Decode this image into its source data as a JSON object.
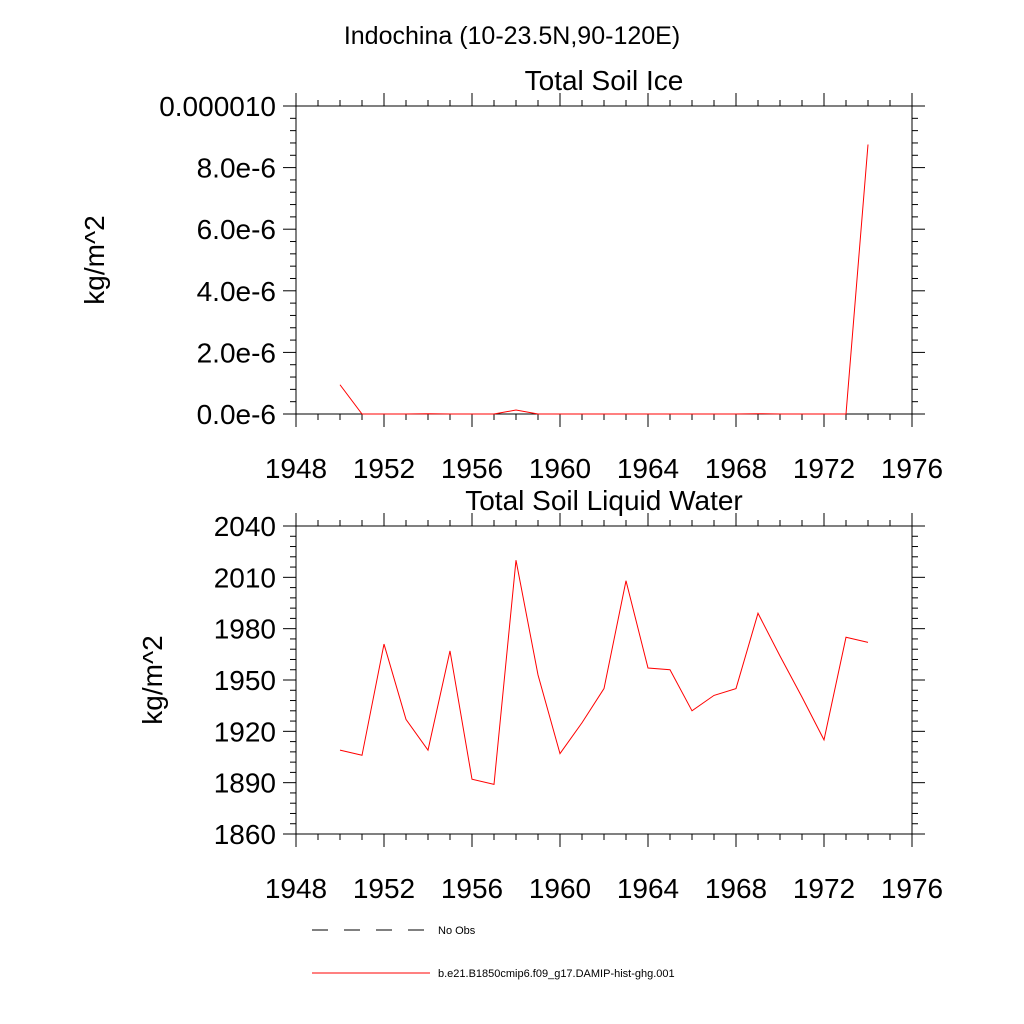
{
  "figure": {
    "suptitle": "Indochina (10-23.5N,90-120E)"
  },
  "colors": {
    "model_line": "#ff0000",
    "obs_line": "#000000",
    "axis": "#000000"
  },
  "legend": {
    "placement": "bottom",
    "entries": [
      {
        "label": "No Obs",
        "style": "dashed",
        "color": "#000000"
      },
      {
        "label": "b.e21.B1850cmip6.f09_g17.DAMIP-hist-ghg.001",
        "style": "solid",
        "color": "#ff0000"
      }
    ]
  },
  "chart_data": [
    {
      "type": "line",
      "title": "Total Soil Ice",
      "xlabel": "",
      "ylabel": "kg/m^2",
      "xlim": [
        1948,
        1976
      ],
      "ylim": [
        0,
        1e-05
      ],
      "xticks": [
        1948,
        1952,
        1956,
        1960,
        1964,
        1968,
        1972,
        1976
      ],
      "xtick_labels": [
        "1948",
        "1952",
        "1956",
        "1960",
        "1964",
        "1968",
        "1972",
        "1976"
      ],
      "yticks": [
        0,
        2e-06,
        4e-06,
        6e-06,
        8e-06,
        1e-05
      ],
      "ytick_labels": [
        "0.0e-6",
        "2.0e-6",
        "4.0e-6",
        "6.0e-6",
        "8.0e-6",
        "0.000010"
      ],
      "grid": false,
      "series": [
        {
          "name": "b.e21.B1850cmip6.f09_g17.DAMIP-hist-ghg.001",
          "color": "#ff0000",
          "x": [
            1950,
            1951,
            1952,
            1953,
            1954,
            1955,
            1956,
            1957,
            1958,
            1959,
            1960,
            1961,
            1962,
            1963,
            1964,
            1965,
            1966,
            1967,
            1968,
            1969,
            1970,
            1971,
            1972,
            1973,
            1974
          ],
          "y": [
            9.5e-07,
            0.0,
            0.0,
            0.0,
            1e-08,
            0.0,
            0.0,
            0.0,
            1.3e-07,
            0.0,
            0.0,
            0.0,
            0.0,
            0.0,
            0.0,
            0.0,
            0.0,
            0.0,
            0.0,
            1e-08,
            0.0,
            0.0,
            0.0,
            0.0,
            8.75e-06
          ]
        }
      ]
    },
    {
      "type": "line",
      "title": "Total Soil Liquid Water",
      "xlabel": "",
      "ylabel": "kg/m^2",
      "xlim": [
        1948,
        1976
      ],
      "ylim": [
        1860,
        2040
      ],
      "xticks": [
        1948,
        1952,
        1956,
        1960,
        1964,
        1968,
        1972,
        1976
      ],
      "xtick_labels": [
        "1948",
        "1952",
        "1956",
        "1960",
        "1964",
        "1968",
        "1972",
        "1976"
      ],
      "yticks": [
        1860,
        1890,
        1920,
        1950,
        1980,
        2010,
        2040
      ],
      "ytick_labels": [
        "1860",
        "1890",
        "1920",
        "1950",
        "1980",
        "2010",
        "2040"
      ],
      "grid": false,
      "series": [
        {
          "name": "b.e21.B1850cmip6.f09_g17.DAMIP-hist-ghg.001",
          "color": "#ff0000",
          "x": [
            1950,
            1951,
            1952,
            1953,
            1954,
            1955,
            1956,
            1957,
            1958,
            1959,
            1960,
            1961,
            1962,
            1963,
            1964,
            1965,
            1966,
            1967,
            1968,
            1969,
            1970,
            1971,
            1972,
            1973,
            1974
          ],
          "y": [
            1909,
            1906,
            1971,
            1927,
            1909,
            1967,
            1892,
            1889,
            2020,
            1953,
            1907,
            1925,
            1945,
            2008,
            1957,
            1956,
            1932,
            1941,
            1945,
            1989,
            1964,
            1940,
            1915,
            1975,
            1972
          ]
        }
      ]
    }
  ]
}
